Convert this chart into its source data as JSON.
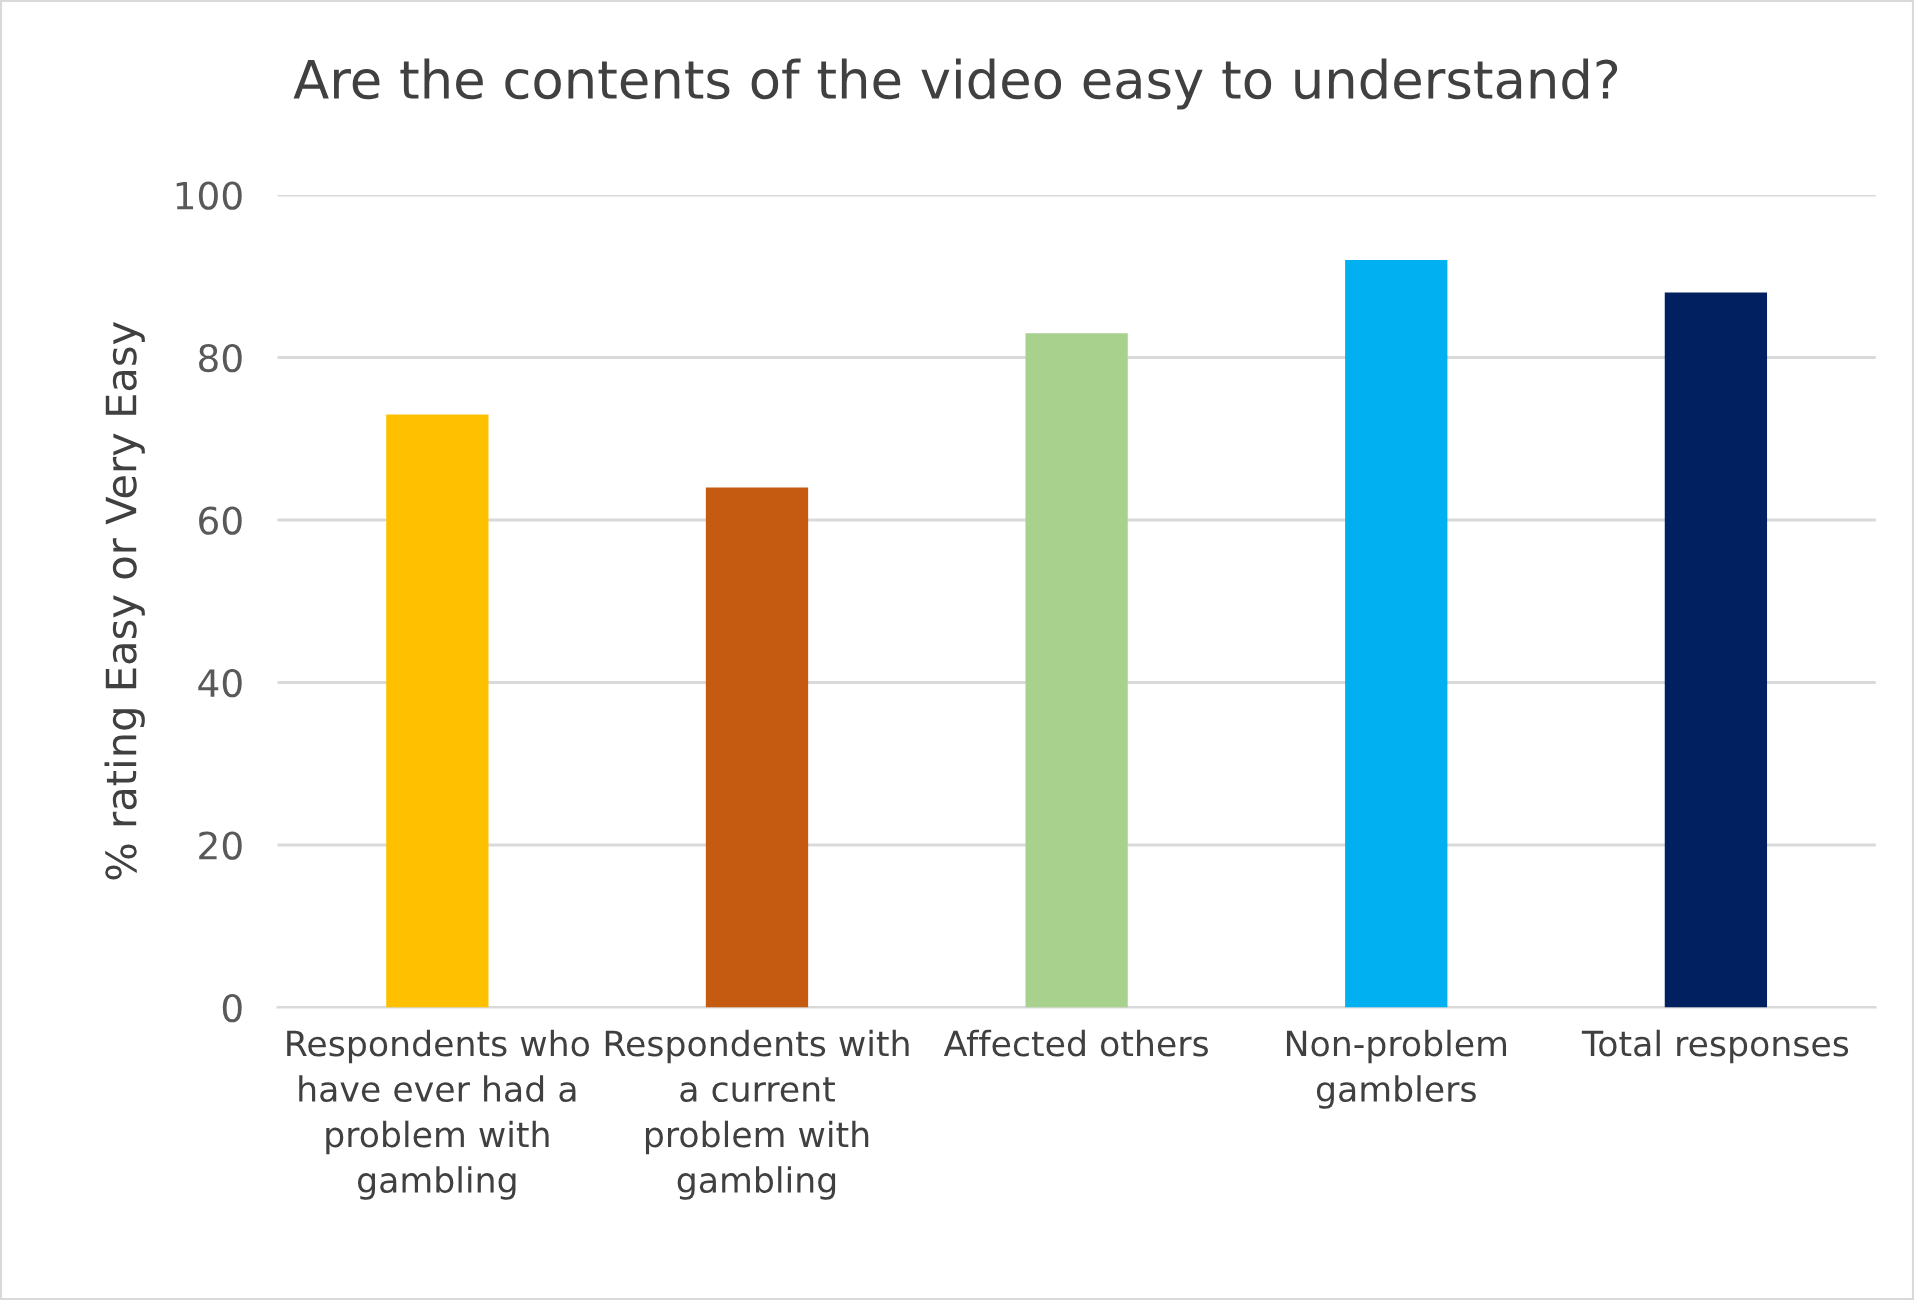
{
  "chart_data": {
    "type": "bar",
    "title": "Are the contents of the video easy to understand?",
    "ylabel": "% rating Easy or Very Easy",
    "categories": [
      "Respondents who have ever had a problem with gambling",
      "Respondents with a current problem with gambling",
      "Affected others",
      "Non-problem gamblers",
      "Total responses"
    ],
    "values": [
      73,
      64,
      83,
      92,
      88
    ],
    "colors": [
      "#ffc000",
      "#c55a11",
      "#a9d18e",
      "#00b0f0",
      "#002060"
    ],
    "ylim": [
      0,
      100
    ],
    "yticks": [
      0,
      20,
      40,
      60,
      80,
      100
    ],
    "grid": "y"
  }
}
